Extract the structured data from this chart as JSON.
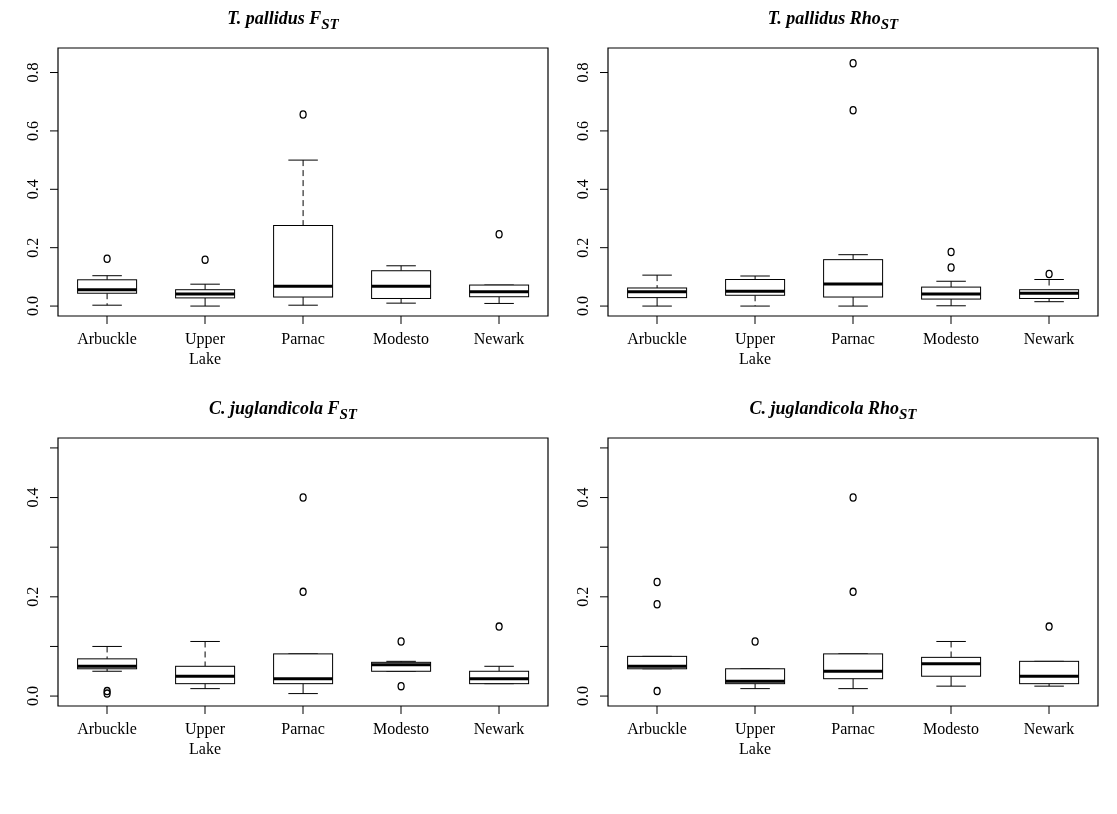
{
  "chart_data": [
    {
      "type": "box",
      "title": "T. pallidus F$_{ST}$",
      "categories": [
        "Arbuckle",
        "Upper Lake",
        "Parnac",
        "Modesto",
        "Newark"
      ],
      "ylim": [
        -0.034,
        0.884
      ],
      "yticks": [
        {
          "value": 0,
          "label": "0.0"
        },
        0.2,
        0.4,
        0.6,
        0.8
      ],
      "boxes": [
        {
          "low": 0.003,
          "q1": 0.044,
          "median": 0.056,
          "q3": 0.09,
          "high": 0.104,
          "outliers": [
            0.162
          ]
        },
        {
          "low": 0,
          "q1": 0.028,
          "median": 0.041,
          "q3": 0.056,
          "high": 0.075,
          "outliers": [
            0.159
          ]
        },
        {
          "low": 0.003,
          "q1": 0.031,
          "median": 0.068,
          "q3": 0.276,
          "high": 0.5,
          "outliers": [
            0.656
          ]
        },
        {
          "low": 0.01,
          "q1": 0.026,
          "median": 0.068,
          "q3": 0.121,
          "high": 0.138
        },
        {
          "low": 0.009,
          "q1": 0.032,
          "median": 0.049,
          "q3": 0.072,
          "high": 0.072,
          "outliers": [
            0.246
          ]
        }
      ]
    },
    {
      "type": "box",
      "title": "T. pallidus Rho$_{ST}$",
      "categories": [
        "Arbuckle",
        "Upper Lake",
        "Parnac",
        "Modesto",
        "Newark"
      ],
      "ylim": [
        -0.034,
        0.884
      ],
      "yticks": [
        {
          "value": 0,
          "label": "0.0"
        },
        0.2,
        0.4,
        0.6,
        0.8
      ],
      "boxes": [
        {
          "low": 0,
          "q1": 0.029,
          "median": 0.049,
          "q3": 0.062,
          "high": 0.106
        },
        {
          "low": 0,
          "q1": 0.037,
          "median": 0.051,
          "q3": 0.091,
          "high": 0.103
        },
        {
          "low": 0,
          "q1": 0.031,
          "median": 0.076,
          "q3": 0.159,
          "high": 0.176,
          "outliers": [
            0.671,
            0.832
          ]
        },
        {
          "low": 0.001,
          "q1": 0.024,
          "median": 0.041,
          "q3": 0.065,
          "high": 0.085,
          "outliers": [
            0.132,
            0.185
          ]
        },
        {
          "low": 0.015,
          "q1": 0.026,
          "median": 0.044,
          "q3": 0.056,
          "high": 0.091,
          "outliers": [
            0.11
          ]
        }
      ]
    },
    {
      "type": "box",
      "title": "C. juglandicola F$_{ST}$",
      "categories": [
        "Arbuckle",
        "Upper Lake",
        "Parnac",
        "Modesto",
        "Newark"
      ],
      "ylim": [
        -0.02,
        0.52
      ],
      "yticks": [
        {
          "value": 0,
          "label": "0.0"
        },
        {
          "value": 0.1,
          "label": null
        },
        0.2,
        {
          "value": 0.3,
          "label": null
        },
        0.4,
        {
          "value": 0.5,
          "label": null
        }
      ],
      "boxes": [
        {
          "low": 0.05,
          "q1": 0.055,
          "median": 0.06,
          "q3": 0.075,
          "high": 0.1,
          "outliers": [
            0.01,
            0.005
          ]
        },
        {
          "low": 0.015,
          "q1": 0.025,
          "median": 0.04,
          "q3": 0.06,
          "high": 0.11
        },
        {
          "low": 0.005,
          "q1": 0.025,
          "median": 0.035,
          "q3": 0.085,
          "high": 0.085,
          "outliers": [
            0.21,
            0.4
          ]
        },
        {
          "low": 0.05,
          "q1": 0.05,
          "median": 0.063,
          "q3": 0.068,
          "high": 0.07,
          "outliers": [
            0.11,
            0.02
          ]
        },
        {
          "low": 0.025,
          "q1": 0.025,
          "median": 0.035,
          "q3": 0.05,
          "high": 0.06,
          "outliers": [
            0.14
          ]
        }
      ]
    },
    {
      "type": "box",
      "title": "C. juglandicola Rho$_{ST}$",
      "categories": [
        "Arbuckle",
        "Upper Lake",
        "Parnac",
        "Modesto",
        "Newark"
      ],
      "ylim": [
        -0.02,
        0.52
      ],
      "yticks": [
        {
          "value": 0,
          "label": "0.0"
        },
        {
          "value": 0.1,
          "label": null
        },
        0.2,
        {
          "value": 0.3,
          "label": null
        },
        0.4,
        {
          "value": 0.5,
          "label": null
        }
      ],
      "boxes": [
        {
          "low": 0.055,
          "q1": 0.055,
          "median": 0.06,
          "q3": 0.08,
          "high": 0.08,
          "outliers": [
            0.01,
            0.185,
            0.23
          ]
        },
        {
          "low": 0.015,
          "q1": 0.025,
          "median": 0.03,
          "q3": 0.055,
          "high": 0.055,
          "outliers": [
            0.11
          ]
        },
        {
          "low": 0.015,
          "q1": 0.035,
          "median": 0.05,
          "q3": 0.085,
          "high": 0.085,
          "outliers": [
            0.21,
            0.4
          ]
        },
        {
          "low": 0.02,
          "q1": 0.04,
          "median": 0.065,
          "q3": 0.078,
          "high": 0.11
        },
        {
          "low": 0.02,
          "q1": 0.025,
          "median": 0.04,
          "q3": 0.07,
          "high": 0.07,
          "outliers": [
            0.14
          ]
        }
      ]
    }
  ]
}
